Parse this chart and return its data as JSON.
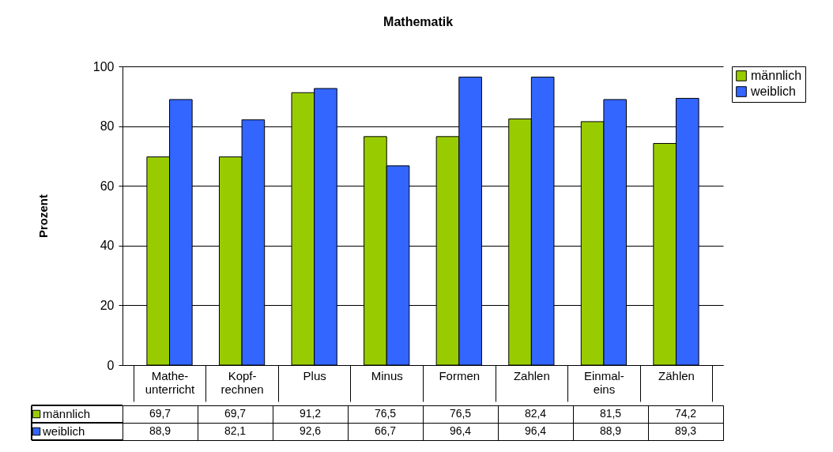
{
  "chart_data": {
    "type": "bar",
    "title": "Mathematik",
    "ylabel": "Prozent",
    "categories": [
      "Mathe-unterricht",
      "Kopf-rechnen",
      "Plus",
      "Minus",
      "Formen",
      "Zahlen",
      "Einmal-eins",
      "Zählen"
    ],
    "series": [
      {
        "name": "männlich",
        "color": "#99cc00",
        "values": [
          69.7,
          69.7,
          91.2,
          76.5,
          76.5,
          82.4,
          81.5,
          74.2
        ],
        "value_labels": [
          "69,7",
          "69,7",
          "91,2",
          "76,5",
          "76,5",
          "82,4",
          "81,5",
          "74,2"
        ]
      },
      {
        "name": "weiblich",
        "color": "#3366ff",
        "values": [
          88.9,
          82.1,
          92.6,
          66.7,
          96.4,
          96.4,
          88.9,
          89.3
        ],
        "value_labels": [
          "88,9",
          "82,1",
          "92,6",
          "66,7",
          "96,4",
          "96,4",
          "88,9",
          "89,3"
        ]
      }
    ],
    "ylim": [
      0,
      100
    ],
    "yticks": [
      0,
      20,
      40,
      60,
      80,
      100
    ],
    "grid": "y",
    "legend": "right"
  }
}
